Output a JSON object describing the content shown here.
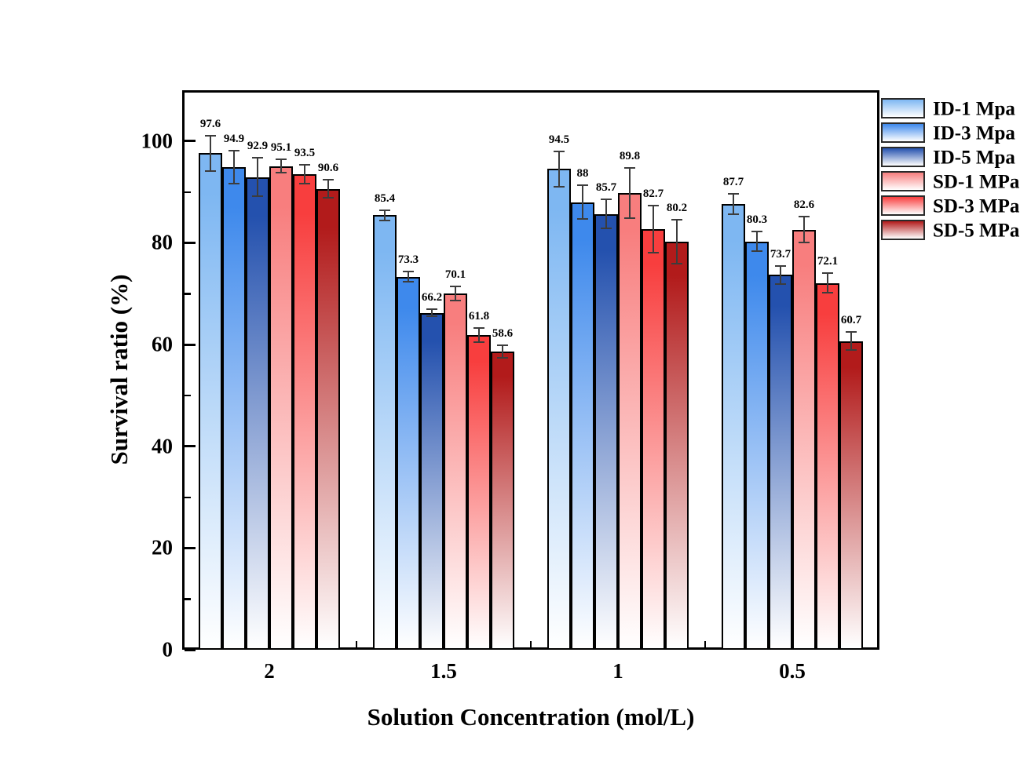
{
  "chart_data": {
    "type": "bar",
    "title": "",
    "xlabel": "Solution Concentration (mol/L)",
    "ylabel": "Survival ratio (%)",
    "categories": [
      "2",
      "1.5",
      "1",
      "0.5"
    ],
    "series": [
      {
        "name": "ID-1 Mpa",
        "color": "#7EB7F2",
        "values": [
          97.6,
          85.4,
          94.5,
          87.7
        ],
        "errors": [
          3.5,
          1.0,
          3.5,
          2.0
        ]
      },
      {
        "name": "ID-3 Mpa",
        "color": "#3E89EC",
        "values": [
          94.9,
          73.3,
          88,
          80.3
        ],
        "errors": [
          3.2,
          1.0,
          3.3,
          2.0
        ]
      },
      {
        "name": "ID-5 Mpa",
        "color": "#2451AE",
        "values": [
          92.9,
          66.2,
          85.7,
          73.7
        ],
        "errors": [
          3.8,
          0.7,
          2.8,
          1.8
        ]
      },
      {
        "name": "SD-1 MPa",
        "color": "#F87E7E",
        "values": [
          95.1,
          70.1,
          89.8,
          82.6
        ],
        "errors": [
          1.3,
          1.4,
          5.0,
          2.6
        ]
      },
      {
        "name": "SD-3 MPa",
        "color": "#F83E3E",
        "values": [
          93.5,
          61.8,
          82.7,
          72.1
        ],
        "errors": [
          1.8,
          1.4,
          4.6,
          1.9
        ]
      },
      {
        "name": "SD-5 MPa",
        "color": "#B21B1B",
        "values": [
          90.6,
          58.6,
          80.2,
          60.7
        ],
        "errors": [
          1.8,
          1.2,
          4.3,
          1.8
        ]
      }
    ],
    "bar_label_values": [
      [
        "97.6",
        "85.4",
        "94.5",
        "87.7"
      ],
      [
        "94.9",
        "73.3",
        "88",
        "80.3"
      ],
      [
        "92.9",
        "66.2",
        "85.7",
        "73.7"
      ],
      [
        "95.1",
        "70.1",
        "89.8",
        "82.6"
      ],
      [
        "93.5",
        "61.8",
        "82.7",
        "72.1"
      ],
      [
        "90.6",
        "58.6",
        "80.2",
        "60.7"
      ]
    ],
    "y_axis": {
      "min": 0,
      "max": 110,
      "major_ticks": [
        0,
        20,
        40,
        60,
        80,
        100
      ],
      "minor_ticks": [
        10,
        30,
        50,
        70,
        90
      ]
    },
    "legend_position": "top-right-outside",
    "grid": false,
    "gradient_fade_to": "#FFFFFF",
    "error_bar_color": "#3c3c3c"
  }
}
